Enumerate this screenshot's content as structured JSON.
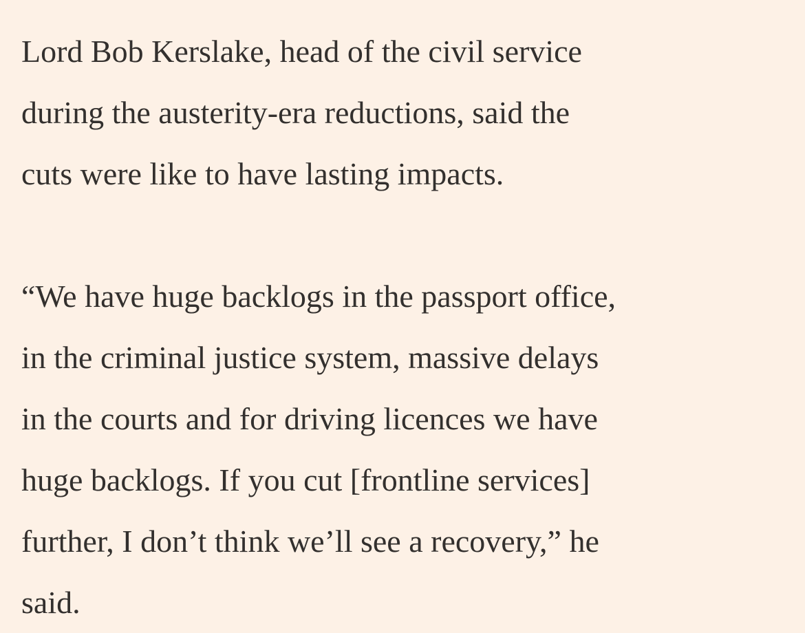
{
  "article": {
    "paragraphs": [
      {
        "lines": [
          "Lord Bob Kerslake, head of the civil service",
          "during the austerity-era reductions, said the",
          "cuts were like to have lasting impacts."
        ]
      },
      {
        "lines": [
          "“We have huge backlogs in the passport office,",
          "in the criminal justice system, massive delays",
          "in the courts and for driving licences we have",
          "huge backlogs. If you cut [frontline services]",
          "further, I don’t think we’ll see a recovery,” he",
          "said."
        ]
      }
    ]
  }
}
